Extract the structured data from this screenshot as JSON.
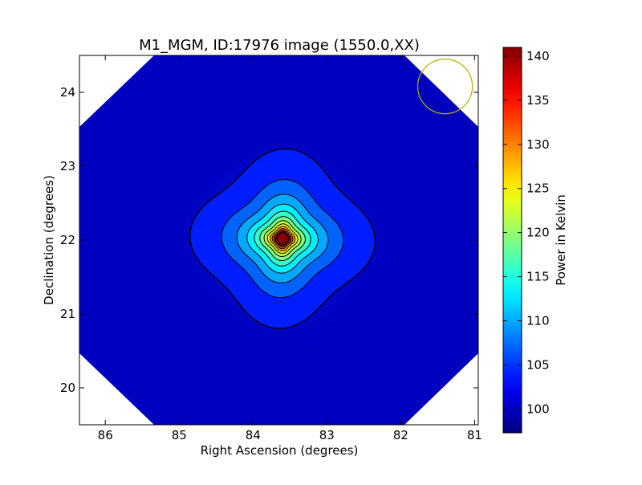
{
  "chart_data": {
    "type": "heatmap",
    "title": "M1_MGM, ID:17976 image (1550.0,XX)",
    "xlabel": "Right Ascension (degrees)",
    "ylabel": "Declination (degrees)",
    "x_direction": "decreasing to the right",
    "xlim": [
      86.35,
      80.95
    ],
    "ylim": [
      19.5,
      24.5
    ],
    "x_ticks": [
      86,
      85,
      84,
      83,
      82,
      81
    ],
    "x_tick_labels": [
      "86",
      "85",
      "84",
      "83",
      "82",
      "81"
    ],
    "y_ticks": [
      20,
      21,
      22,
      23,
      24
    ],
    "y_tick_labels": [
      "20",
      "21",
      "22",
      "23",
      "24"
    ],
    "colormap": "jet",
    "colorbar": {
      "label": "Power in Kelvin",
      "range": [
        97.3,
        141
      ],
      "ticks": [
        100,
        105,
        110,
        115,
        120,
        125,
        130,
        135,
        140
      ],
      "tick_labels": [
        "100",
        "105",
        "110",
        "115",
        "120",
        "125",
        "130",
        "135",
        "140"
      ]
    },
    "background_level": 100,
    "peak": {
      "ra": 83.6,
      "dec": 22.02,
      "value": 141
    },
    "contour_levels": [
      102.5,
      105.5,
      108.5,
      111.5,
      114.5,
      117.5,
      120.5,
      123.5,
      126.5,
      129.5,
      132.5,
      135.5,
      138.5
    ],
    "contour_color": "#000000",
    "beam_marker": {
      "ra": 81.4,
      "dec": 24.08,
      "radius_deg": 0.37,
      "color": "#b5b500"
    },
    "grid": false
  }
}
